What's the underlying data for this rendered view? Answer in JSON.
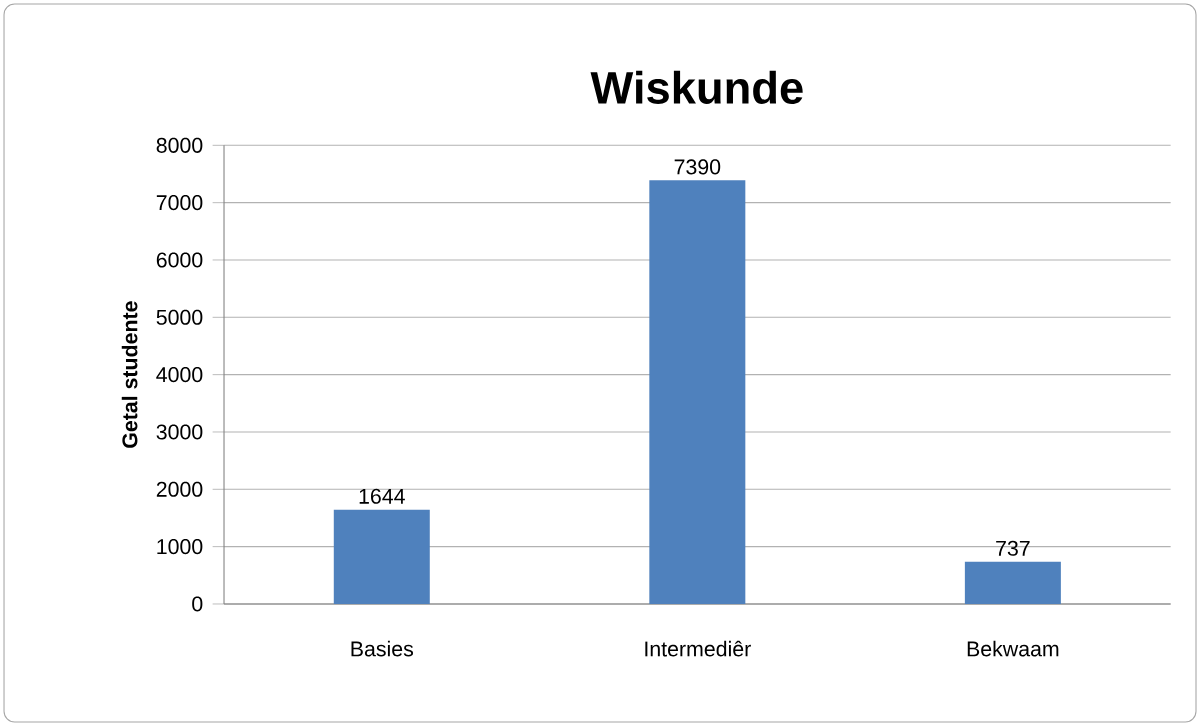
{
  "chart_data": {
    "type": "bar",
    "title": "Wiskunde",
    "ylabel": "Getal studente",
    "categories": [
      "Basies",
      "Intermediêr",
      "Bekwaam"
    ],
    "values": [
      1644,
      7390,
      737
    ],
    "color": "#4f81bd",
    "ylim": [
      0,
      8000
    ],
    "yticks": [
      0,
      1000,
      2000,
      3000,
      4000,
      5000,
      6000,
      7000,
      8000
    ],
    "grid": "y",
    "data_labels": true
  }
}
